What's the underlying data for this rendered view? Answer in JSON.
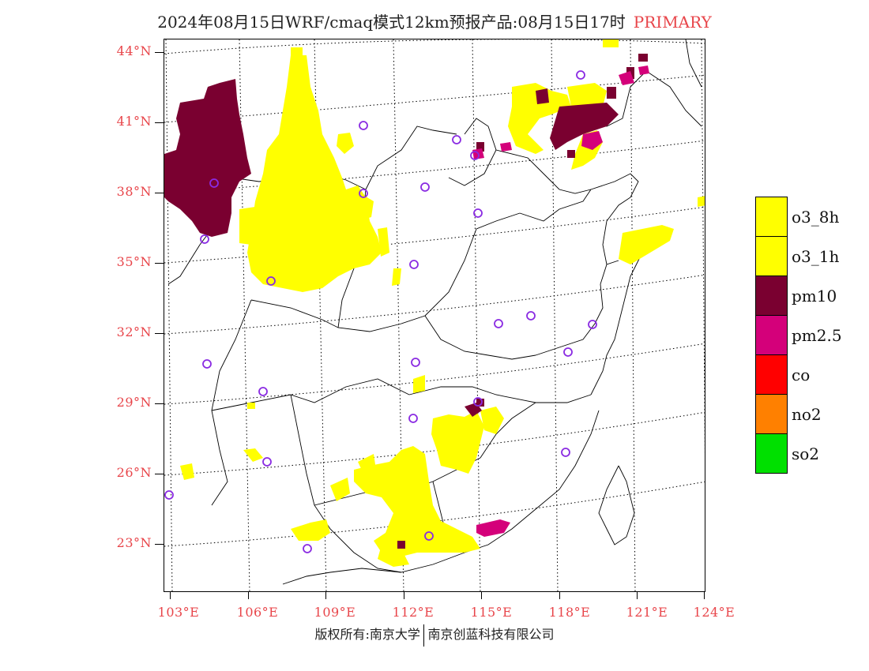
{
  "title": {
    "main": "2024年08月15日WRF/cmaq模式12km预报产品:08月15日17时",
    "tag": "PRIMARY"
  },
  "lat_labels": [
    "44°N",
    "41°N",
    "38°N",
    "35°N",
    "32°N",
    "29°N",
    "26°N",
    "23°N"
  ],
  "lon_labels": [
    "103°E",
    "106°E",
    "109°E",
    "112°E",
    "115°E",
    "118°E",
    "121°E",
    "124°E"
  ],
  "legend": [
    {
      "label": "o3_8h",
      "color": "#ffff00"
    },
    {
      "label": "o3_1h",
      "color": "#ffff00"
    },
    {
      "label": "pm10",
      "color": "#7a0030"
    },
    {
      "label": "pm2.5",
      "color": "#d4007a"
    },
    {
      "label": "co",
      "color": "#ff0000"
    },
    {
      "label": "no2",
      "color": "#ff8000"
    },
    {
      "label": "so2",
      "color": "#00e000"
    }
  ],
  "footer": {
    "left": "版权所有:南京大学",
    "right": "南京创蓝科技有限公司"
  },
  "colors": {
    "o3": "#ffff00",
    "pm10": "#7a0030",
    "pm25": "#d4007a",
    "station": "#8a2be2",
    "label_red": "#e8454a"
  }
}
